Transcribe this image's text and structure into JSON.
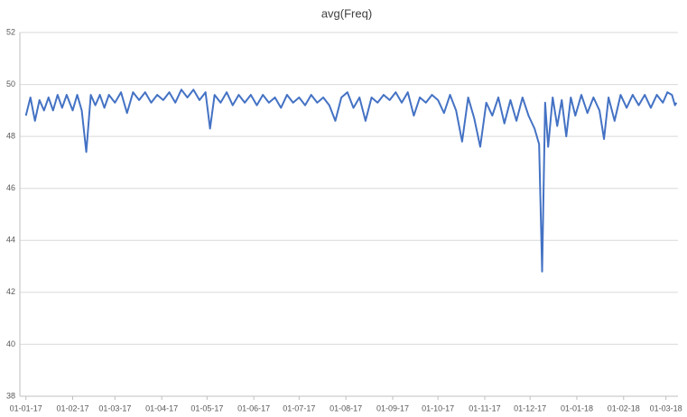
{
  "chart_data": {
    "type": "line",
    "title": "avg(Freq)",
    "x": [
      "2017-01-01",
      "2017-01-04",
      "2017-01-07",
      "2017-01-10",
      "2017-01-13",
      "2017-01-16",
      "2017-01-19",
      "2017-01-22",
      "2017-01-25",
      "2017-01-28",
      "2017-02-01",
      "2017-02-04",
      "2017-02-07",
      "2017-02-10",
      "2017-02-13",
      "2017-02-16",
      "2017-02-19",
      "2017-02-22",
      "2017-02-25",
      "2017-03-01",
      "2017-03-05",
      "2017-03-09",
      "2017-03-13",
      "2017-03-17",
      "2017-03-21",
      "2017-03-25",
      "2017-03-29",
      "2017-04-02",
      "2017-04-06",
      "2017-04-10",
      "2017-04-14",
      "2017-04-18",
      "2017-04-22",
      "2017-04-26",
      "2017-04-30",
      "2017-05-03",
      "2017-05-06",
      "2017-05-10",
      "2017-05-14",
      "2017-05-18",
      "2017-05-22",
      "2017-05-26",
      "2017-05-30",
      "2017-06-03",
      "2017-06-07",
      "2017-06-11",
      "2017-06-15",
      "2017-06-19",
      "2017-06-23",
      "2017-06-27",
      "2017-07-01",
      "2017-07-05",
      "2017-07-09",
      "2017-07-13",
      "2017-07-17",
      "2017-07-21",
      "2017-07-25",
      "2017-07-29",
      "2017-08-02",
      "2017-08-06",
      "2017-08-10",
      "2017-08-14",
      "2017-08-18",
      "2017-08-22",
      "2017-08-26",
      "2017-08-30",
      "2017-09-03",
      "2017-09-07",
      "2017-09-11",
      "2017-09-15",
      "2017-09-19",
      "2017-09-23",
      "2017-09-27",
      "2017-10-01",
      "2017-10-05",
      "2017-10-09",
      "2017-10-13",
      "2017-10-17",
      "2017-10-21",
      "2017-10-25",
      "2017-10-29",
      "2017-11-02",
      "2017-11-06",
      "2017-11-10",
      "2017-11-14",
      "2017-11-18",
      "2017-11-22",
      "2017-11-26",
      "2017-11-30",
      "2017-12-04",
      "2017-12-07",
      "2017-12-09",
      "2017-12-11",
      "2017-12-13",
      "2017-12-16",
      "2017-12-19",
      "2017-12-22",
      "2017-12-25",
      "2017-12-28",
      "2017-12-31",
      "2018-01-04",
      "2018-01-08",
      "2018-01-12",
      "2018-01-16",
      "2018-01-19",
      "2018-01-22",
      "2018-01-26",
      "2018-01-30",
      "2018-02-03",
      "2018-02-07",
      "2018-02-11",
      "2018-02-15",
      "2018-02-19",
      "2018-02-23",
      "2018-02-27",
      "2018-03-02",
      "2018-03-05",
      "2018-03-07",
      "2018-03-08"
    ],
    "series": [
      {
        "color": "#4472c4",
        "values": [
          48.8,
          49.5,
          48.6,
          49.4,
          49.0,
          49.5,
          49.0,
          49.6,
          49.1,
          49.6,
          49.0,
          49.6,
          49.0,
          47.4,
          49.6,
          49.2,
          49.6,
          49.1,
          49.6,
          49.3,
          49.7,
          48.9,
          49.7,
          49.4,
          49.7,
          49.3,
          49.6,
          49.4,
          49.7,
          49.3,
          49.8,
          49.5,
          49.8,
          49.4,
          49.7,
          48.3,
          49.6,
          49.3,
          49.7,
          49.2,
          49.6,
          49.3,
          49.6,
          49.2,
          49.6,
          49.3,
          49.5,
          49.1,
          49.6,
          49.3,
          49.5,
          49.2,
          49.6,
          49.3,
          49.5,
          49.2,
          48.6,
          49.5,
          49.7,
          49.1,
          49.5,
          48.6,
          49.5,
          49.3,
          49.6,
          49.4,
          49.7,
          49.3,
          49.7,
          48.8,
          49.5,
          49.3,
          49.6,
          49.4,
          48.9,
          49.6,
          49.0,
          47.8,
          49.5,
          48.7,
          47.6,
          49.3,
          48.8,
          49.5,
          48.5,
          49.4,
          48.6,
          49.5,
          48.8,
          48.3,
          47.7,
          42.8,
          49.3,
          47.6,
          49.5,
          48.4,
          49.4,
          48.0,
          49.5,
          48.8,
          49.6,
          48.9,
          49.5,
          49.0,
          47.9,
          49.5,
          48.6,
          49.6,
          49.1,
          49.6,
          49.2,
          49.6,
          49.1,
          49.6,
          49.3,
          49.7,
          49.6,
          49.2,
          49.3
        ]
      }
    ],
    "ylim": [
      38,
      52
    ],
    "yticks": [
      38,
      40,
      42,
      44,
      46,
      48,
      50,
      52
    ],
    "xlim": [
      "2016-12-28",
      "2018-03-09"
    ],
    "xticks": [
      {
        "value": "2017-01-01",
        "label": "01-01-17"
      },
      {
        "value": "2017-02-01",
        "label": "01-02-17"
      },
      {
        "value": "2017-03-01",
        "label": "01-03-17"
      },
      {
        "value": "2017-04-01",
        "label": "01-04-17"
      },
      {
        "value": "2017-05-01",
        "label": "01-05-17"
      },
      {
        "value": "2017-06-01",
        "label": "01-06-17"
      },
      {
        "value": "2017-07-01",
        "label": "01-07-17"
      },
      {
        "value": "2017-08-01",
        "label": "01-08-17"
      },
      {
        "value": "2017-09-01",
        "label": "01-09-17"
      },
      {
        "value": "2017-10-01",
        "label": "01-10-17"
      },
      {
        "value": "2017-11-01",
        "label": "01-11-17"
      },
      {
        "value": "2017-12-01",
        "label": "01-12-17"
      },
      {
        "value": "2018-01-01",
        "label": "01-01-18"
      },
      {
        "value": "2018-02-01",
        "label": "01-02-18"
      },
      {
        "value": "2018-03-01",
        "label": "01-03-18"
      }
    ],
    "grid": true
  }
}
